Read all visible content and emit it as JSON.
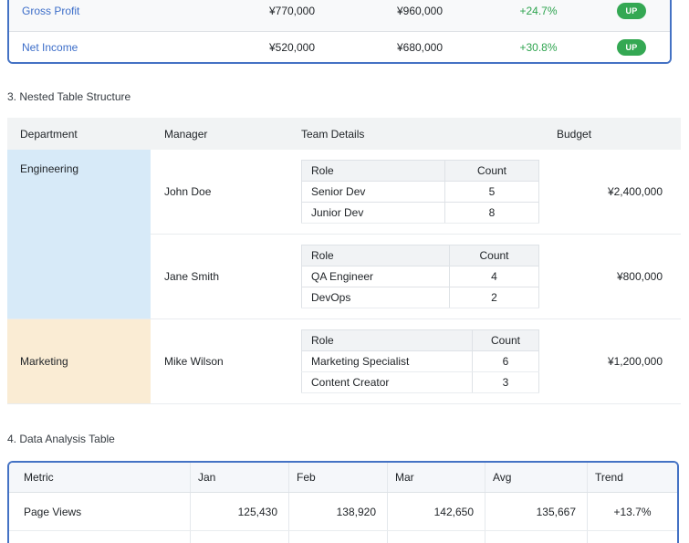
{
  "colors": {
    "accent_border_blue": "#4472c4",
    "link_blue": "#3d6ec9",
    "trend_green": "#2ea44f",
    "badge_green": "#34a853",
    "engineering_bg": "#d7eaf8",
    "marketing_bg": "#faecd4",
    "table_header_bg": "#f1f3f4",
    "nested_header_bg": "#f1f3f5"
  },
  "fin": {
    "rows": [
      {
        "metric": "Gross Profit",
        "value1": "¥770,000",
        "value2": "¥960,000",
        "change": "+24.7%",
        "badge": "UP"
      },
      {
        "metric": "Net Income",
        "value1": "¥520,000",
        "value2": "¥680,000",
        "change": "+30.8%",
        "badge": "UP"
      }
    ]
  },
  "s3": {
    "heading": "3. Nested Table Structure",
    "headers": [
      "Department",
      "Manager",
      "Team Details",
      "Budget"
    ],
    "nested_headers": [
      "Role",
      "Count"
    ],
    "groups": [
      {
        "department": "Engineering",
        "managers": [
          {
            "name": "John Doe",
            "team": [
              {
                "role": "Senior Dev",
                "count": "5"
              },
              {
                "role": "Junior Dev",
                "count": "8"
              }
            ],
            "budget": "¥2,400,000"
          },
          {
            "name": "Jane Smith",
            "team": [
              {
                "role": "QA Engineer",
                "count": "4"
              },
              {
                "role": "DevOps",
                "count": "2"
              }
            ],
            "budget": "¥800,000"
          }
        ]
      },
      {
        "department": "Marketing",
        "managers": [
          {
            "name": "Mike Wilson",
            "team": [
              {
                "role": "Marketing Specialist",
                "count": "6"
              },
              {
                "role": "Content Creator",
                "count": "3"
              }
            ],
            "budget": "¥1,200,000"
          }
        ]
      }
    ]
  },
  "s4": {
    "heading": "4. Data Analysis Table",
    "headers": [
      "Metric",
      "Jan",
      "Feb",
      "Mar",
      "Avg",
      "Trend"
    ],
    "rows": [
      {
        "metric": "Page Views",
        "values": [
          "125,430",
          "138,920",
          "142,650",
          "135,667"
        ],
        "trend": "+13.7%"
      }
    ]
  }
}
